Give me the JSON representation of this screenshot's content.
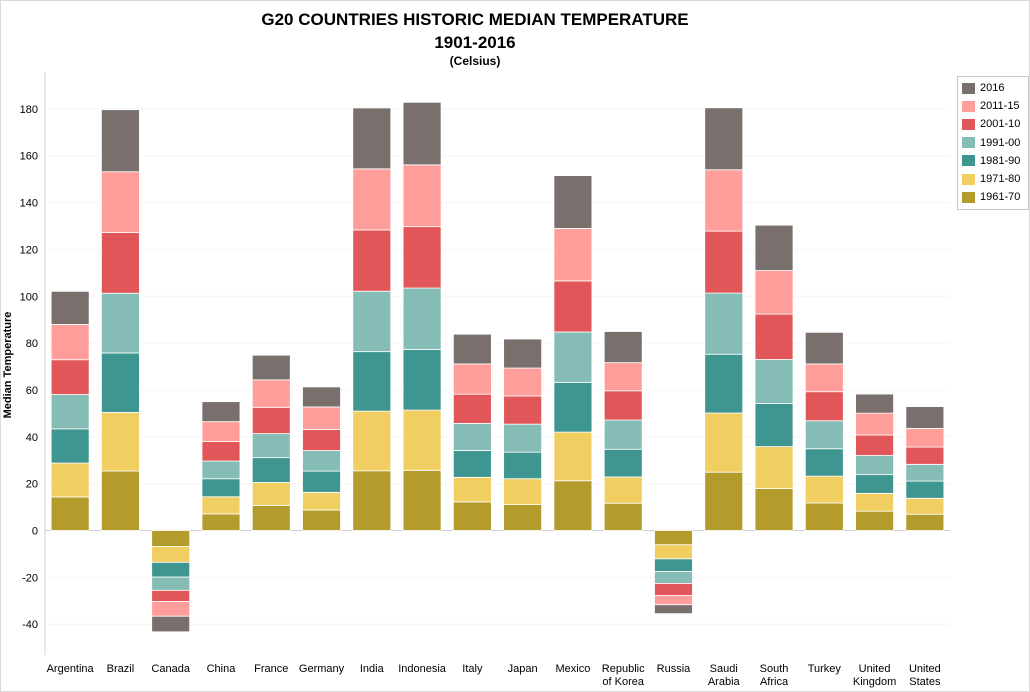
{
  "title": "G20 COUNTRIES HISTORIC MEDIAN TEMPERATURE",
  "subtitle": "1901-2016",
  "unit": "(Celsius)",
  "chart_data": {
    "type": "bar",
    "stacked": true,
    "ylabel": "Median Temperature",
    "ylim": [
      -45,
      190
    ],
    "yticks": [
      -40,
      -20,
      0,
      20,
      40,
      60,
      80,
      100,
      120,
      140,
      160,
      180
    ],
    "grid": true,
    "legend_position": "top-right",
    "categories": [
      "Argentina",
      "Brazil",
      "Canada",
      "China",
      "France",
      "Germany",
      "India",
      "Indonesia",
      "Italy",
      "Japan",
      "Mexico",
      "Republic of Korea",
      "Russia",
      "Saudi Arabia",
      "South Africa",
      "Turkey",
      "United Kingdom",
      "United States"
    ],
    "series": [
      {
        "name": "1961-70",
        "color": "#b39b2c",
        "values": [
          14.3,
          25.4,
          -6.8,
          7.1,
          10.75,
          8.75,
          25.5,
          25.7,
          12.2,
          11.05,
          21.25,
          11.65,
          -6.1,
          24.9,
          17.9,
          11.75,
          8.25,
          6.95
        ]
      },
      {
        "name": "1971-80",
        "color": "#f0ce61",
        "values": [
          14.5,
          25.0,
          -6.8,
          7.3,
          9.75,
          7.55,
          25.45,
          25.7,
          10.5,
          11.05,
          20.75,
          11.2,
          -6.0,
          25.25,
          17.9,
          11.45,
          7.6,
          6.8
        ]
      },
      {
        "name": "1981-90",
        "color": "#3f9690",
        "values": [
          14.6,
          25.4,
          -6.3,
          7.7,
          10.6,
          9.05,
          25.4,
          25.9,
          11.45,
          11.35,
          21.25,
          11.85,
          -5.4,
          25.1,
          18.4,
          11.7,
          8.0,
          7.35
        ]
      },
      {
        "name": "1991-00",
        "color": "#86bcb6",
        "values": [
          14.65,
          25.5,
          -5.65,
          7.55,
          10.25,
          8.8,
          25.8,
          26.2,
          11.55,
          11.95,
          21.5,
          12.45,
          -5.1,
          26.1,
          18.8,
          11.95,
          8.15,
          7.15
        ]
      },
      {
        "name": "2001-10",
        "color": "#e15759",
        "values": [
          14.85,
          25.9,
          -4.75,
          8.4,
          11.25,
          9.0,
          26.15,
          26.2,
          12.5,
          12.05,
          21.8,
          12.5,
          -5.1,
          26.45,
          19.4,
          12.4,
          8.75,
          7.35
        ]
      },
      {
        "name": "2011-15",
        "color": "#ff9d9a",
        "values": [
          15.05,
          25.95,
          -6.3,
          8.4,
          11.7,
          9.6,
          26.1,
          26.4,
          12.9,
          11.9,
          22.4,
          12.0,
          -4.0,
          26.2,
          18.55,
          11.85,
          9.35,
          8.0
        ]
      },
      {
        "name": "2016",
        "color": "#79706e",
        "values": [
          14.15,
          26.5,
          -6.65,
          8.55,
          10.55,
          8.55,
          26.0,
          26.7,
          12.7,
          12.4,
          22.55,
          13.3,
          -3.8,
          26.45,
          19.4,
          13.5,
          8.15,
          9.3
        ]
      }
    ]
  }
}
